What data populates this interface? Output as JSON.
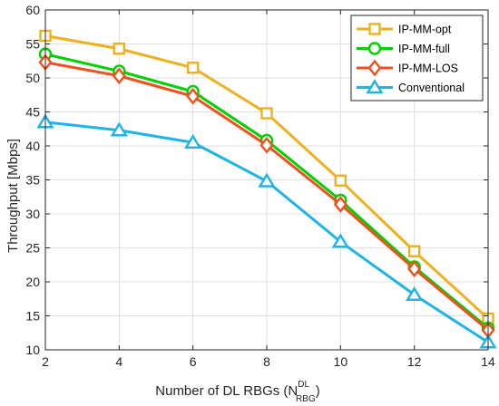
{
  "chart_data": {
    "type": "line",
    "title": "",
    "xlabel": "Number of DL RBGs (N",
    "xlabel_sup": "DL",
    "xlabel_sub": "RBG",
    "xlabel_close": ")",
    "ylabel": "Throughput [Mbps]",
    "x": [
      2,
      4,
      6,
      8,
      10,
      12,
      14
    ],
    "xlim": [
      2,
      14
    ],
    "ylim": [
      10,
      60
    ],
    "xticks": [
      2,
      4,
      6,
      8,
      10,
      12,
      14
    ],
    "yticks": [
      10,
      15,
      20,
      25,
      30,
      35,
      40,
      45,
      50,
      55,
      60
    ],
    "grid": true,
    "legend_position": "top-right",
    "series": [
      {
        "name": "IP-MM-opt",
        "color": "#EDB120",
        "marker": "square",
        "values": [
          56.2,
          54.3,
          51.5,
          44.8,
          34.9,
          24.5,
          14.6
        ]
      },
      {
        "name": "IP-MM-full",
        "color": "#00D000",
        "marker": "circle",
        "values": [
          53.5,
          51.0,
          48.0,
          40.8,
          32.0,
          22.2,
          13.2
        ]
      },
      {
        "name": "IP-MM-LOS",
        "color": "#F0501C",
        "marker": "diamond",
        "values": [
          52.3,
          50.3,
          47.3,
          40.1,
          31.4,
          21.9,
          12.9
        ]
      },
      {
        "name": "Conventional",
        "color": "#1EB4E6",
        "marker": "triangle",
        "values": [
          43.5,
          42.3,
          40.5,
          34.8,
          25.9,
          18.1,
          11.1
        ]
      }
    ]
  }
}
